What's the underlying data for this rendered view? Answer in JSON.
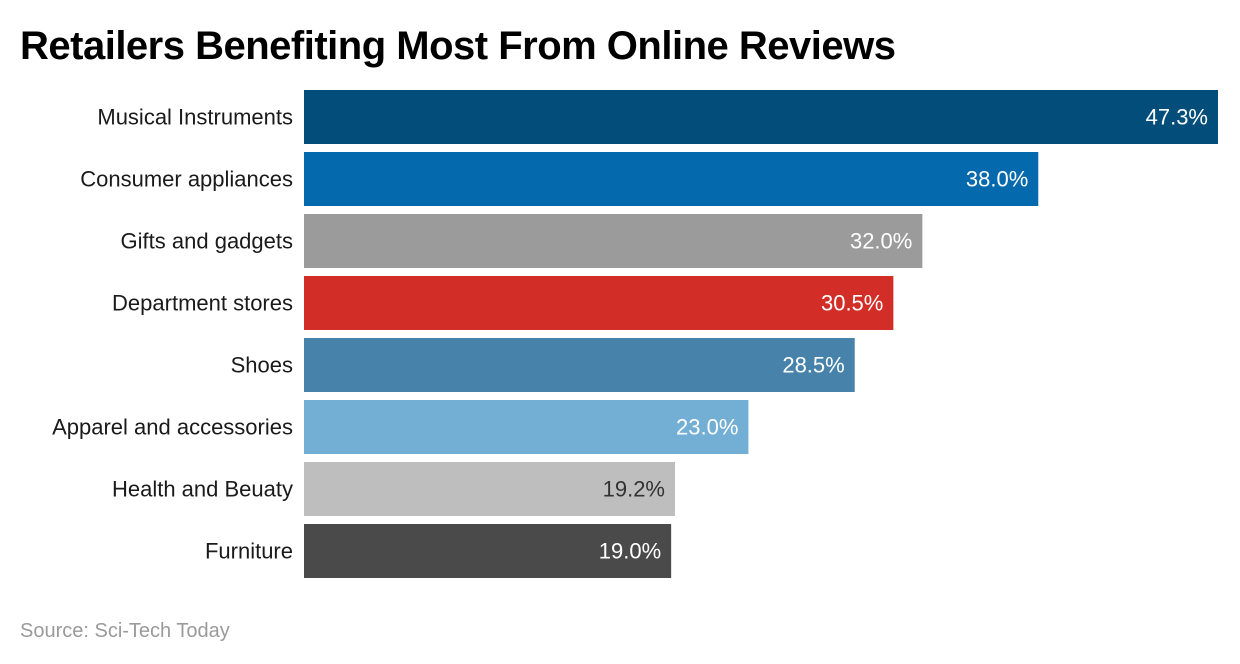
{
  "title": "Retailers Benefiting Most From Online Reviews",
  "source": "Source: Sci-Tech Today",
  "chart_data": {
    "type": "bar",
    "orientation": "horizontal",
    "title": "Retailers Benefiting Most From Online Reviews",
    "categories": [
      "Musical Instruments",
      "Consumer appliances",
      "Gifts and gadgets",
      "Department stores",
      "Shoes",
      "Apparel and accessories",
      "Health and Beuaty",
      "Furniture"
    ],
    "values": [
      47.3,
      38.0,
      32.0,
      30.5,
      28.5,
      23.0,
      19.2,
      19.0
    ],
    "value_labels": [
      "47.3%",
      "38.0%",
      "32.0%",
      "30.5%",
      "28.5%",
      "23.0%",
      "19.2%",
      "19.0%"
    ],
    "bar_colors": [
      "#034d7a",
      "#0469ad",
      "#9b9b9b",
      "#d22e27",
      "#4682aa",
      "#73afd5",
      "#bebebe",
      "#4a4a4a"
    ],
    "label_colors": [
      "#ffffff",
      "#ffffff",
      "#ffffff",
      "#ffffff",
      "#ffffff",
      "#ffffff",
      "#333333",
      "#ffffff"
    ],
    "xlim": [
      0,
      47.3
    ],
    "grid": false,
    "legend": "none"
  }
}
